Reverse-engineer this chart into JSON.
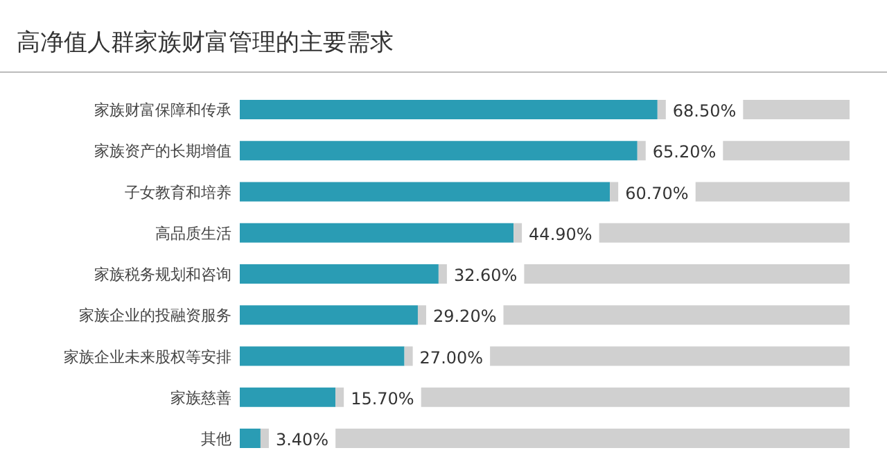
{
  "chart_data": {
    "type": "bar",
    "orientation": "horizontal",
    "title": "高净值人群家族财富管理的主要需求",
    "categories": [
      "家族财富保障和传承",
      "家族资产的长期增值",
      "子女教育和培养",
      "高品质生活",
      "家族税务规划和咨询",
      "家族企业的投融资服务",
      "家族企业未来股权等安排",
      "家族慈善",
      "其他"
    ],
    "values": [
      68.5,
      65.2,
      60.7,
      44.9,
      32.6,
      29.2,
      27.0,
      15.7,
      3.4
    ],
    "value_labels": [
      "68.50%",
      "65.20%",
      "60.70%",
      "44.90%",
      "32.60%",
      "29.20%",
      "27.00%",
      "15.70%",
      "3.40%"
    ],
    "color": "#2a9cb4",
    "xlim": [
      0,
      100
    ]
  }
}
